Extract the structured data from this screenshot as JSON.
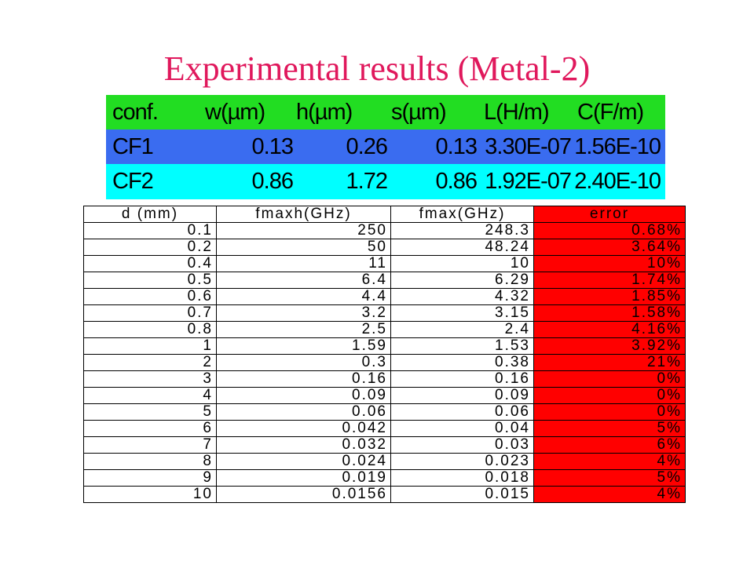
{
  "title": "Experimental results (Metal-2)",
  "conf_table": {
    "headers": [
      "conf.",
      "w(µm)",
      "h(µm)",
      "s(µm)",
      "L(H/m)",
      "C(F/m)"
    ],
    "rows": [
      [
        "CF1",
        "0.13",
        "0.26",
        "0.13",
        "3.30E-07",
        "1.56E-10"
      ],
      [
        "CF2",
        "0.86",
        "1.72",
        "0.86",
        "1.92E-07",
        "2.40E-10"
      ]
    ],
    "colors": {
      "header": "#22dd22",
      "row1": "#3a6cf0",
      "row2": "#00ffff"
    }
  },
  "results_table": {
    "headers": [
      "d (mm)",
      "fmaxh(GHz)",
      "fmax(GHz)",
      "error"
    ],
    "rows": [
      [
        "0.1",
        "250",
        "248.3",
        "0.68%"
      ],
      [
        "0.2",
        "50",
        "48.24",
        "3.64%"
      ],
      [
        "0.4",
        "11",
        "10",
        "10%"
      ],
      [
        "0.5",
        "6.4",
        "6.29",
        "1.74%"
      ],
      [
        "0.6",
        "4.4",
        "4.32",
        "1.85%"
      ],
      [
        "0.7",
        "3.2",
        "3.15",
        "1.58%"
      ],
      [
        "0.8",
        "2.5",
        "2.4",
        "4.16%"
      ],
      [
        "1",
        "1.59",
        "1.53",
        "3.92%"
      ],
      [
        "2",
        "0.3",
        "0.38",
        "21%"
      ],
      [
        "3",
        "0.16",
        "0.16",
        "0%"
      ],
      [
        "4",
        "0.09",
        "0.09",
        "0%"
      ],
      [
        "5",
        "0.06",
        "0.06",
        "0%"
      ],
      [
        "6",
        "0.042",
        "0.04",
        "5%"
      ],
      [
        "7",
        "0.032",
        "0.03",
        "6%"
      ],
      [
        "8",
        "0.024",
        "0.023",
        "4%"
      ],
      [
        "9",
        "0.019",
        "0.018",
        "5%"
      ],
      [
        "10",
        "0.0156",
        "0.015",
        "4%"
      ]
    ],
    "colors": {
      "error_column": "#ff0000"
    }
  }
}
